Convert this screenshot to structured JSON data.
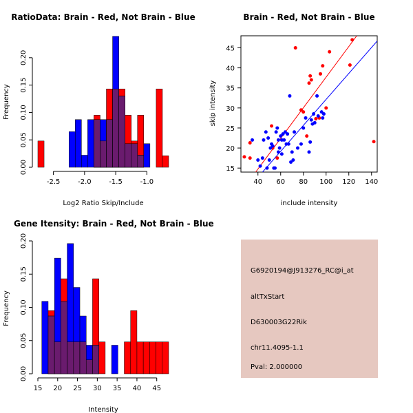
{
  "colors": {
    "brain": "#ff0000",
    "not_brain": "#0000ff",
    "overlap": "#6a1b6e",
    "info_bg": "#e6c8c0",
    "pval": "#b40000"
  },
  "chart_data": [
    {
      "id": "ratio",
      "type": "bar",
      "title": "RatioData: Brain - Red, Not Brain - Blue",
      "xlabel": "Log2 Ratio Skip/Include",
      "ylabel": "Frequency",
      "xlim": [
        -2.75,
        -0.65
      ],
      "ylim": [
        0,
        0.24
      ],
      "xticks": [
        -2.5,
        -2.0,
        -1.5,
        -1.0
      ],
      "xtick_labels": [
        "-2.5",
        "-2.0",
        "-1.5",
        "-1.0"
      ],
      "yticks": [
        0,
        0.05,
        0.1,
        0.15,
        0.2
      ],
      "ytick_labels": [
        "0.00",
        "0.05",
        "0.10",
        "0.15",
        "0.20"
      ],
      "bin_start": -2.75,
      "bin_width": 0.1,
      "series": [
        {
          "name": "Brain",
          "color_key": "brain",
          "values": [
            0.048,
            0,
            0,
            0,
            0,
            0,
            0,
            0,
            0,
            0.095,
            0.048,
            0.143,
            0.143,
            0.143,
            0.095,
            0.048,
            0.095,
            0,
            0,
            0.143,
            0.021
          ]
        },
        {
          "name": "Not Brain",
          "color_key": "not_brain",
          "values": [
            0,
            0,
            0,
            0,
            0,
            0.065,
            0.087,
            0.022,
            0.087,
            0.087,
            0.087,
            0.087,
            0.239,
            0.13,
            0.043,
            0.043,
            0.022,
            0.043,
            0,
            0,
            0
          ]
        }
      ]
    },
    {
      "id": "scatter",
      "type": "scatter",
      "title": "Brain - Red, Not Brain - Blue",
      "xlabel": "include intensity",
      "ylabel": "skip intensity",
      "xlim": [
        25,
        145
      ],
      "ylim": [
        14,
        48
      ],
      "xticks": [
        40,
        60,
        80,
        100,
        120,
        140
      ],
      "yticks": [
        15,
        20,
        25,
        30,
        35,
        40,
        45
      ],
      "series": [
        {
          "name": "Brain",
          "color_key": "brain",
          "points": [
            [
              28,
              17.8
            ],
            [
              33,
              17.5
            ],
            [
              33,
              21.3
            ],
            [
              52,
              25.5
            ],
            [
              53,
              20
            ],
            [
              57,
              17.5
            ],
            [
              73,
              45
            ],
            [
              78,
              29.5
            ],
            [
              80,
              29
            ],
            [
              83,
              23
            ],
            [
              85,
              36.2
            ],
            [
              86,
              38
            ],
            [
              87,
              37
            ],
            [
              91,
              27.3
            ],
            [
              94,
              27.5
            ],
            [
              95,
              38.5
            ],
            [
              97,
              40.5
            ],
            [
              100,
              30
            ],
            [
              103,
              44
            ],
            [
              121,
              40.7
            ],
            [
              123,
              47
            ],
            [
              142,
              21.6
            ]
          ],
          "fit": [
            [
              38,
              14
            ],
            [
              127,
              48
            ]
          ]
        },
        {
          "name": "Not Brain",
          "color_key": "not_brain",
          "points": [
            [
              35,
              22
            ],
            [
              40,
              17
            ],
            [
              42,
              15.5
            ],
            [
              44,
              17.5
            ],
            [
              45,
              22
            ],
            [
              47,
              24
            ],
            [
              48,
              15
            ],
            [
              49,
              22.5
            ],
            [
              50,
              17
            ],
            [
              51,
              20
            ],
            [
              52,
              21
            ],
            [
              53,
              20.5
            ],
            [
              54,
              15
            ],
            [
              55,
              15
            ],
            [
              56,
              24
            ],
            [
              57,
              25
            ],
            [
              58,
              22
            ],
            [
              58,
              19
            ],
            [
              59,
              20
            ],
            [
              60,
              23
            ],
            [
              61,
              22
            ],
            [
              61,
              18.5
            ],
            [
              62,
              23.5
            ],
            [
              63,
              22
            ],
            [
              64,
              24
            ],
            [
              65,
              21
            ],
            [
              66,
              23.5
            ],
            [
              67,
              21
            ],
            [
              68,
              33
            ],
            [
              69,
              16.5
            ],
            [
              70,
              19
            ],
            [
              71,
              17
            ],
            [
              72,
              24
            ],
            [
              75,
              20
            ],
            [
              78,
              21
            ],
            [
              80,
              25
            ],
            [
              82,
              27.5
            ],
            [
              85,
              19
            ],
            [
              86,
              21.5
            ],
            [
              87,
              27
            ],
            [
              88,
              26
            ],
            [
              89,
              28.5
            ],
            [
              90,
              26.3
            ],
            [
              92,
              33
            ],
            [
              93,
              28
            ],
            [
              96,
              29
            ],
            [
              97,
              27.5
            ],
            [
              98,
              28.5
            ]
          ],
          "fit": [
            [
              44,
              14
            ],
            [
              145,
              46.7
            ]
          ]
        }
      ]
    },
    {
      "id": "intensity",
      "type": "bar",
      "title": "Gene Itensity: Brain - Red, Not Brain - Blue",
      "xlabel": "Intensity",
      "ylabel": "Frequency",
      "xlim": [
        15,
        48
      ],
      "ylim": [
        0,
        0.2
      ],
      "xticks": [
        15,
        20,
        25,
        30,
        35,
        40,
        45
      ],
      "yticks": [
        0,
        0.05,
        0.1,
        0.15,
        0.2
      ],
      "ytick_labels": [
        "0.00",
        "0.05",
        "0.10",
        "0.15",
        "0.20"
      ],
      "bin_start": 16,
      "bin_width": 1.6,
      "series": [
        {
          "name": "Brain",
          "color_key": "brain",
          "values": [
            0,
            0.095,
            0.048,
            0.143,
            0.048,
            0.048,
            0.048,
            0.021,
            0.143,
            0.048,
            0,
            0,
            0,
            0.048,
            0.095,
            0.048,
            0.048,
            0.048,
            0.048,
            0.048
          ]
        },
        {
          "name": "Not Brain",
          "color_key": "not_brain",
          "values": [
            0.109,
            0.087,
            0.174,
            0.109,
            0.196,
            0.13,
            0.087,
            0.043,
            0.043,
            0,
            0,
            0.043,
            0,
            0,
            0,
            0,
            0,
            0,
            0,
            0
          ]
        }
      ]
    }
  ],
  "info_panel": {
    "probe_id": "G6920194@J913276_RC@i_at",
    "event_type": "altTxStart",
    "gene": "D630003G22Rik",
    "location": "chr11.4095-1.1",
    "pval": "Pval: 2.000000"
  }
}
